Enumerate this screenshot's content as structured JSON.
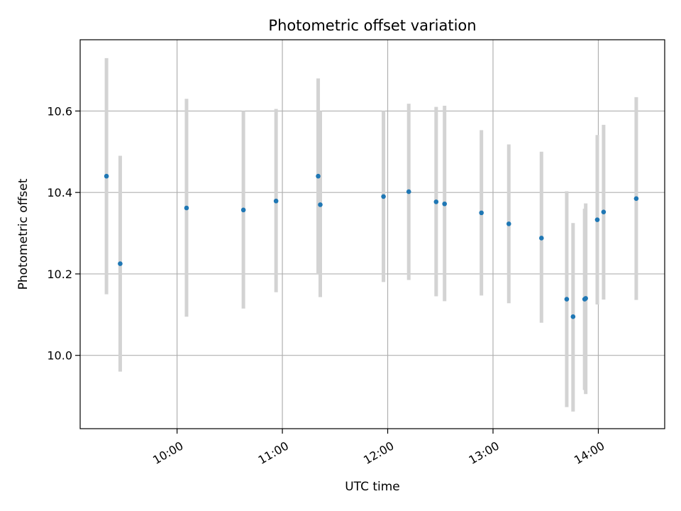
{
  "chart_data": {
    "type": "scatter",
    "title": "Photometric offset variation",
    "xlabel": "UTC time",
    "ylabel": "Photometric offset",
    "x_unit": "hours (UTC)",
    "xlim": [
      9.08,
      14.63
    ],
    "ylim": [
      9.82,
      10.775
    ],
    "x_ticks": [
      {
        "value": 10,
        "label": "10:00"
      },
      {
        "value": 11,
        "label": "11:00"
      },
      {
        "value": 12,
        "label": "12:00"
      },
      {
        "value": 13,
        "label": "13:00"
      },
      {
        "value": 14,
        "label": "14:00"
      }
    ],
    "y_ticks": [
      {
        "value": 10.0,
        "label": "10.0"
      },
      {
        "value": 10.2,
        "label": "10.2"
      },
      {
        "value": 10.4,
        "label": "10.4"
      },
      {
        "value": 10.6,
        "label": "10.6"
      }
    ],
    "grid": true,
    "point_color": "#1f77b4",
    "errorbar_color": "#d3d3d3",
    "points": [
      {
        "x": 9.33,
        "y": 10.44,
        "err_low": 10.15,
        "err_high": 10.73
      },
      {
        "x": 9.46,
        "y": 10.225,
        "err_low": 9.96,
        "err_high": 10.49
      },
      {
        "x": 10.09,
        "y": 10.362,
        "err_low": 10.095,
        "err_high": 10.63
      },
      {
        "x": 10.63,
        "y": 10.357,
        "err_low": 10.115,
        "err_high": 10.6
      },
      {
        "x": 10.94,
        "y": 10.379,
        "err_low": 10.155,
        "err_high": 10.605
      },
      {
        "x": 11.34,
        "y": 10.44,
        "err_low": 10.2,
        "err_high": 10.68
      },
      {
        "x": 11.36,
        "y": 10.37,
        "err_low": 10.143,
        "err_high": 10.6
      },
      {
        "x": 11.96,
        "y": 10.39,
        "err_low": 10.18,
        "err_high": 10.6
      },
      {
        "x": 12.2,
        "y": 10.402,
        "err_low": 10.185,
        "err_high": 10.618
      },
      {
        "x": 12.46,
        "y": 10.377,
        "err_low": 10.145,
        "err_high": 10.61
      },
      {
        "x": 12.54,
        "y": 10.372,
        "err_low": 10.133,
        "err_high": 10.613
      },
      {
        "x": 12.89,
        "y": 10.35,
        "err_low": 10.147,
        "err_high": 10.553
      },
      {
        "x": 13.15,
        "y": 10.323,
        "err_low": 10.128,
        "err_high": 10.518
      },
      {
        "x": 13.46,
        "y": 10.288,
        "err_low": 10.08,
        "err_high": 10.5
      },
      {
        "x": 13.7,
        "y": 10.138,
        "err_low": 9.873,
        "err_high": 10.403
      },
      {
        "x": 13.76,
        "y": 10.095,
        "err_low": 9.862,
        "err_high": 10.325
      },
      {
        "x": 13.87,
        "y": 10.138,
        "err_low": 9.915,
        "err_high": 10.36
      },
      {
        "x": 13.88,
        "y": 10.14,
        "err_low": 9.905,
        "err_high": 10.373
      },
      {
        "x": 13.99,
        "y": 10.333,
        "err_low": 10.125,
        "err_high": 10.541
      },
      {
        "x": 14.05,
        "y": 10.352,
        "err_low": 10.137,
        "err_high": 10.566
      },
      {
        "x": 14.36,
        "y": 10.385,
        "err_low": 10.136,
        "err_high": 10.634
      }
    ]
  }
}
